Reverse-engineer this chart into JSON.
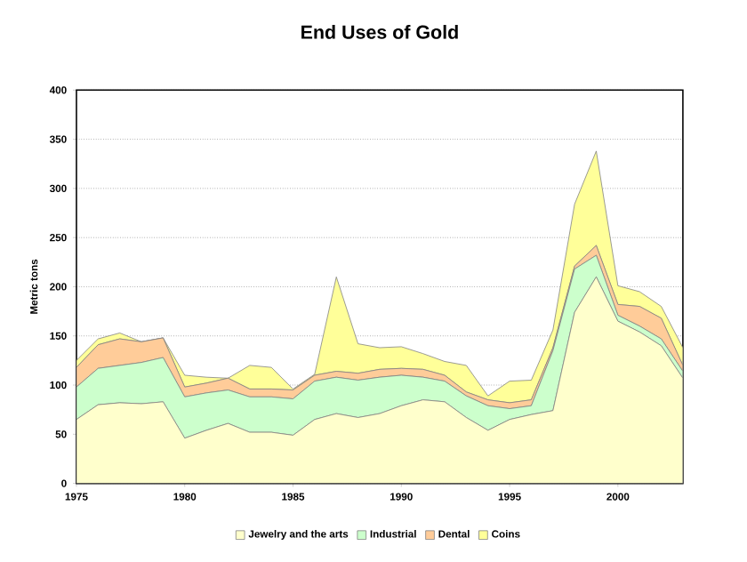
{
  "chart_data": {
    "type": "area",
    "title": "End Uses of Gold",
    "ylabel": "Metric tons",
    "stacked": true,
    "x": [
      1975,
      1976,
      1977,
      1978,
      1979,
      1980,
      1981,
      1982,
      1983,
      1984,
      1985,
      1986,
      1987,
      1988,
      1989,
      1990,
      1991,
      1992,
      1993,
      1994,
      1995,
      1996,
      1997,
      1998,
      1999,
      2000,
      2001,
      2002,
      2003
    ],
    "series": [
      {
        "name": "Jewelry and the arts",
        "color": "#ffffcc",
        "values": [
          65,
          80,
          82,
          81,
          83,
          46,
          54,
          61,
          52,
          52,
          49,
          65,
          71,
          67,
          71,
          79,
          85,
          83,
          67,
          54,
          65,
          70,
          74,
          174,
          210,
          165,
          154,
          140,
          107
        ]
      },
      {
        "name": "Industrial",
        "color": "#ccffcc",
        "values": [
          33,
          37,
          38,
          42,
          45,
          42,
          38,
          34,
          36,
          36,
          37,
          39,
          37,
          38,
          37,
          31,
          23,
          21,
          22,
          25,
          11,
          9,
          61,
          44,
          22,
          6,
          6,
          7,
          7
        ]
      },
      {
        "name": "Dental",
        "color": "#ffcc99",
        "values": [
          20,
          24,
          27,
          21,
          20,
          10,
          10,
          12,
          8,
          8,
          9,
          6,
          6,
          7,
          8,
          7,
          8,
          6,
          4,
          6,
          6,
          6,
          3,
          3,
          10,
          11,
          20,
          21,
          6
        ]
      },
      {
        "name": "Coins",
        "color": "#ffff99",
        "values": [
          7,
          6,
          6,
          0,
          0,
          12,
          6,
          0,
          24,
          22,
          1,
          1,
          96,
          30,
          22,
          22,
          16,
          14,
          27,
          4,
          22,
          20,
          18,
          63,
          96,
          19,
          15,
          12,
          18
        ]
      }
    ],
    "xlim": [
      1975,
      2003
    ],
    "xticks": [
      1975,
      1980,
      1985,
      1990,
      1995,
      2000
    ],
    "ylim": [
      0,
      400
    ],
    "yticks": [
      0,
      50,
      100,
      150,
      200,
      250,
      300,
      350,
      400
    ],
    "grid": "y",
    "legend": "bottom"
  }
}
